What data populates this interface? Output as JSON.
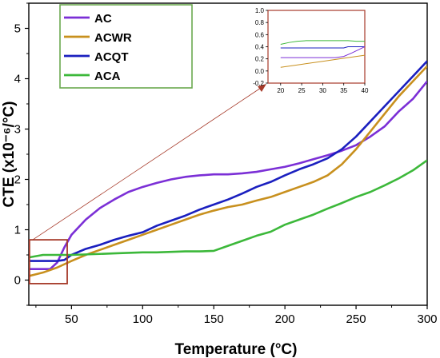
{
  "chart_data": [
    {
      "type": "line",
      "title": "",
      "xlabel": "Temperature (°C)",
      "ylabel": "CTE (x10⁻⁶/°C)",
      "xlim": [
        20,
        300
      ],
      "ylim": [
        -0.5,
        5.5
      ],
      "xticks": [
        "50",
        "100",
        "150",
        "200",
        "250",
        "300"
      ],
      "xtick_values": [
        50,
        100,
        150,
        200,
        250,
        300
      ],
      "yticks": [
        "0",
        "1",
        "2",
        "3",
        "4",
        "5"
      ],
      "ytick_values": [
        0,
        1,
        2,
        3,
        4,
        5
      ],
      "grid": false,
      "legend_position": "top-left",
      "series": [
        {
          "name": "AC",
          "color": "#7b2fd6",
          "x": [
            20,
            30,
            35,
            40,
            45,
            50,
            60,
            70,
            80,
            90,
            100,
            110,
            120,
            130,
            140,
            150,
            160,
            170,
            180,
            190,
            200,
            210,
            220,
            230,
            240,
            250,
            260,
            270,
            280,
            290,
            300
          ],
          "y": [
            0.22,
            0.22,
            0.22,
            0.35,
            0.65,
            0.9,
            1.2,
            1.43,
            1.6,
            1.75,
            1.85,
            1.93,
            2.0,
            2.05,
            2.08,
            2.1,
            2.1,
            2.12,
            2.15,
            2.2,
            2.25,
            2.32,
            2.4,
            2.48,
            2.57,
            2.68,
            2.85,
            3.05,
            3.35,
            3.6,
            3.95
          ]
        },
        {
          "name": "ACWR",
          "color": "#c8901e",
          "x": [
            20,
            30,
            40,
            50,
            60,
            70,
            80,
            90,
            100,
            110,
            120,
            130,
            140,
            150,
            160,
            170,
            180,
            190,
            200,
            210,
            220,
            230,
            240,
            250,
            260,
            270,
            280,
            290,
            300
          ],
          "y": [
            0.08,
            0.15,
            0.25,
            0.38,
            0.5,
            0.6,
            0.7,
            0.8,
            0.9,
            1.0,
            1.1,
            1.2,
            1.3,
            1.38,
            1.45,
            1.5,
            1.58,
            1.65,
            1.75,
            1.85,
            1.95,
            2.08,
            2.3,
            2.6,
            2.95,
            3.3,
            3.65,
            3.95,
            4.25
          ]
        },
        {
          "name": "ACQT",
          "color": "#1a1fbf",
          "x": [
            20,
            30,
            40,
            45,
            50,
            60,
            70,
            80,
            90,
            100,
            110,
            120,
            130,
            140,
            150,
            160,
            170,
            180,
            190,
            200,
            210,
            220,
            230,
            240,
            250,
            260,
            270,
            280,
            290,
            300
          ],
          "y": [
            0.38,
            0.38,
            0.38,
            0.4,
            0.5,
            0.62,
            0.7,
            0.8,
            0.88,
            0.95,
            1.08,
            1.18,
            1.28,
            1.4,
            1.5,
            1.6,
            1.72,
            1.85,
            1.95,
            2.08,
            2.2,
            2.3,
            2.42,
            2.6,
            2.85,
            3.15,
            3.45,
            3.75,
            4.05,
            4.35
          ]
        },
        {
          "name": "ACA",
          "color": "#3cb83a",
          "x": [
            20,
            30,
            40,
            50,
            60,
            70,
            80,
            90,
            100,
            110,
            120,
            130,
            140,
            150,
            160,
            170,
            180,
            190,
            200,
            210,
            220,
            230,
            240,
            250,
            260,
            270,
            280,
            290,
            300
          ],
          "y": [
            0.45,
            0.5,
            0.5,
            0.5,
            0.51,
            0.52,
            0.53,
            0.54,
            0.55,
            0.55,
            0.56,
            0.57,
            0.57,
            0.58,
            0.68,
            0.78,
            0.88,
            0.96,
            1.1,
            1.2,
            1.3,
            1.42,
            1.53,
            1.65,
            1.75,
            1.88,
            2.02,
            2.18,
            2.38
          ]
        }
      ]
    },
    {
      "type": "line",
      "title": "",
      "xlim": [
        17,
        40
      ],
      "ylim": [
        -0.2,
        1.0
      ],
      "xticks": [
        "20",
        "25",
        "30",
        "35",
        "40"
      ],
      "xtick_values": [
        20,
        25,
        30,
        35,
        40
      ],
      "yticks": [
        "-0.2",
        "0.0",
        "0.2",
        "0.4",
        "0.6",
        "0.8",
        "1.0"
      ],
      "ytick_values": [
        -0.2,
        0.0,
        0.2,
        0.4,
        0.6,
        0.8,
        1.0
      ],
      "series": [
        {
          "color": "#3cb83a",
          "x": [
            20,
            22,
            24,
            26,
            28,
            30,
            32,
            34,
            36,
            38,
            40
          ],
          "y": [
            0.44,
            0.47,
            0.49,
            0.5,
            0.5,
            0.5,
            0.5,
            0.5,
            0.5,
            0.49,
            0.49
          ]
        },
        {
          "color": "#1a1fbf",
          "x": [
            20,
            25,
            30,
            35,
            36,
            40
          ],
          "y": [
            0.38,
            0.38,
            0.38,
            0.38,
            0.4,
            0.4
          ]
        },
        {
          "color": "#7b2fd6",
          "x": [
            20,
            25,
            30,
            33,
            35,
            37,
            40
          ],
          "y": [
            0.22,
            0.22,
            0.22,
            0.22,
            0.24,
            0.3,
            0.4
          ]
        },
        {
          "color": "#c8901e",
          "x": [
            20,
            25,
            30,
            35,
            40
          ],
          "y": [
            0.06,
            0.11,
            0.16,
            0.21,
            0.26
          ]
        }
      ]
    }
  ],
  "colors": {
    "zoom_box": "#a63a2a",
    "legend_border": "#6aa84f",
    "inset_border": "#a63a2a",
    "axis": "#000000"
  }
}
